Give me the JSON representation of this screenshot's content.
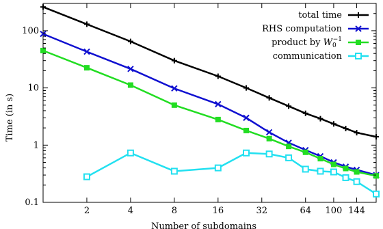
{
  "chart_data": {
    "type": "line",
    "title": "",
    "xlabel": "Number of subdomains",
    "ylabel": "Time (in s)",
    "xscale": "log",
    "yscale": "log",
    "xlim": [
      1,
      196
    ],
    "ylim": [
      0.1,
      300
    ],
    "xticks": [
      2,
      4,
      8,
      16,
      32,
      64,
      100,
      144
    ],
    "xtick_labels": [
      "2",
      "4",
      "8",
      "16",
      "32",
      "64",
      "100",
      "144"
    ],
    "yticks": [
      0.1,
      1,
      10,
      100
    ],
    "ytick_labels": [
      "0.1",
      "1",
      "10",
      "100"
    ],
    "grid": false,
    "legend_position": "top-right",
    "series": [
      {
        "name": "total time",
        "color": "#000000",
        "marker": "plus",
        "x": [
          1,
          2,
          4,
          8,
          16,
          25,
          36,
          49,
          64,
          81,
          100,
          121,
          144,
          196
        ],
        "y": [
          260,
          130,
          65,
          30,
          16,
          10,
          6.7,
          4.8,
          3.6,
          2.9,
          2.35,
          1.95,
          1.65,
          1.4
        ]
      },
      {
        "name": "RHS computation",
        "color": "#1010d0",
        "marker": "x",
        "x": [
          1,
          2,
          4,
          8,
          16,
          25,
          36,
          49,
          64,
          81,
          100,
          121,
          144,
          196
        ],
        "y": [
          88,
          43,
          21.5,
          9.8,
          5.2,
          3.0,
          1.68,
          1.1,
          0.82,
          0.64,
          0.5,
          0.42,
          0.37,
          0.3
        ]
      },
      {
        "name": "product by W_0^-1",
        "color": "#22dd22",
        "marker": "square-filled",
        "x": [
          1,
          2,
          4,
          8,
          16,
          25,
          36,
          49,
          64,
          81,
          100,
          121,
          144,
          196
        ],
        "y": [
          45,
          22.5,
          11.2,
          5.0,
          2.8,
          1.8,
          1.3,
          0.95,
          0.75,
          0.58,
          0.46,
          0.39,
          0.34,
          0.29
        ]
      },
      {
        "name": "communication",
        "color": "#22e0f0",
        "marker": "square-open",
        "x": [
          2,
          4,
          8,
          16,
          25,
          36,
          49,
          64,
          81,
          100,
          121,
          144,
          196
        ],
        "y": [
          0.28,
          0.73,
          0.35,
          0.4,
          0.73,
          0.7,
          0.6,
          0.38,
          0.35,
          0.34,
          0.27,
          0.23,
          0.14
        ]
      }
    ]
  }
}
